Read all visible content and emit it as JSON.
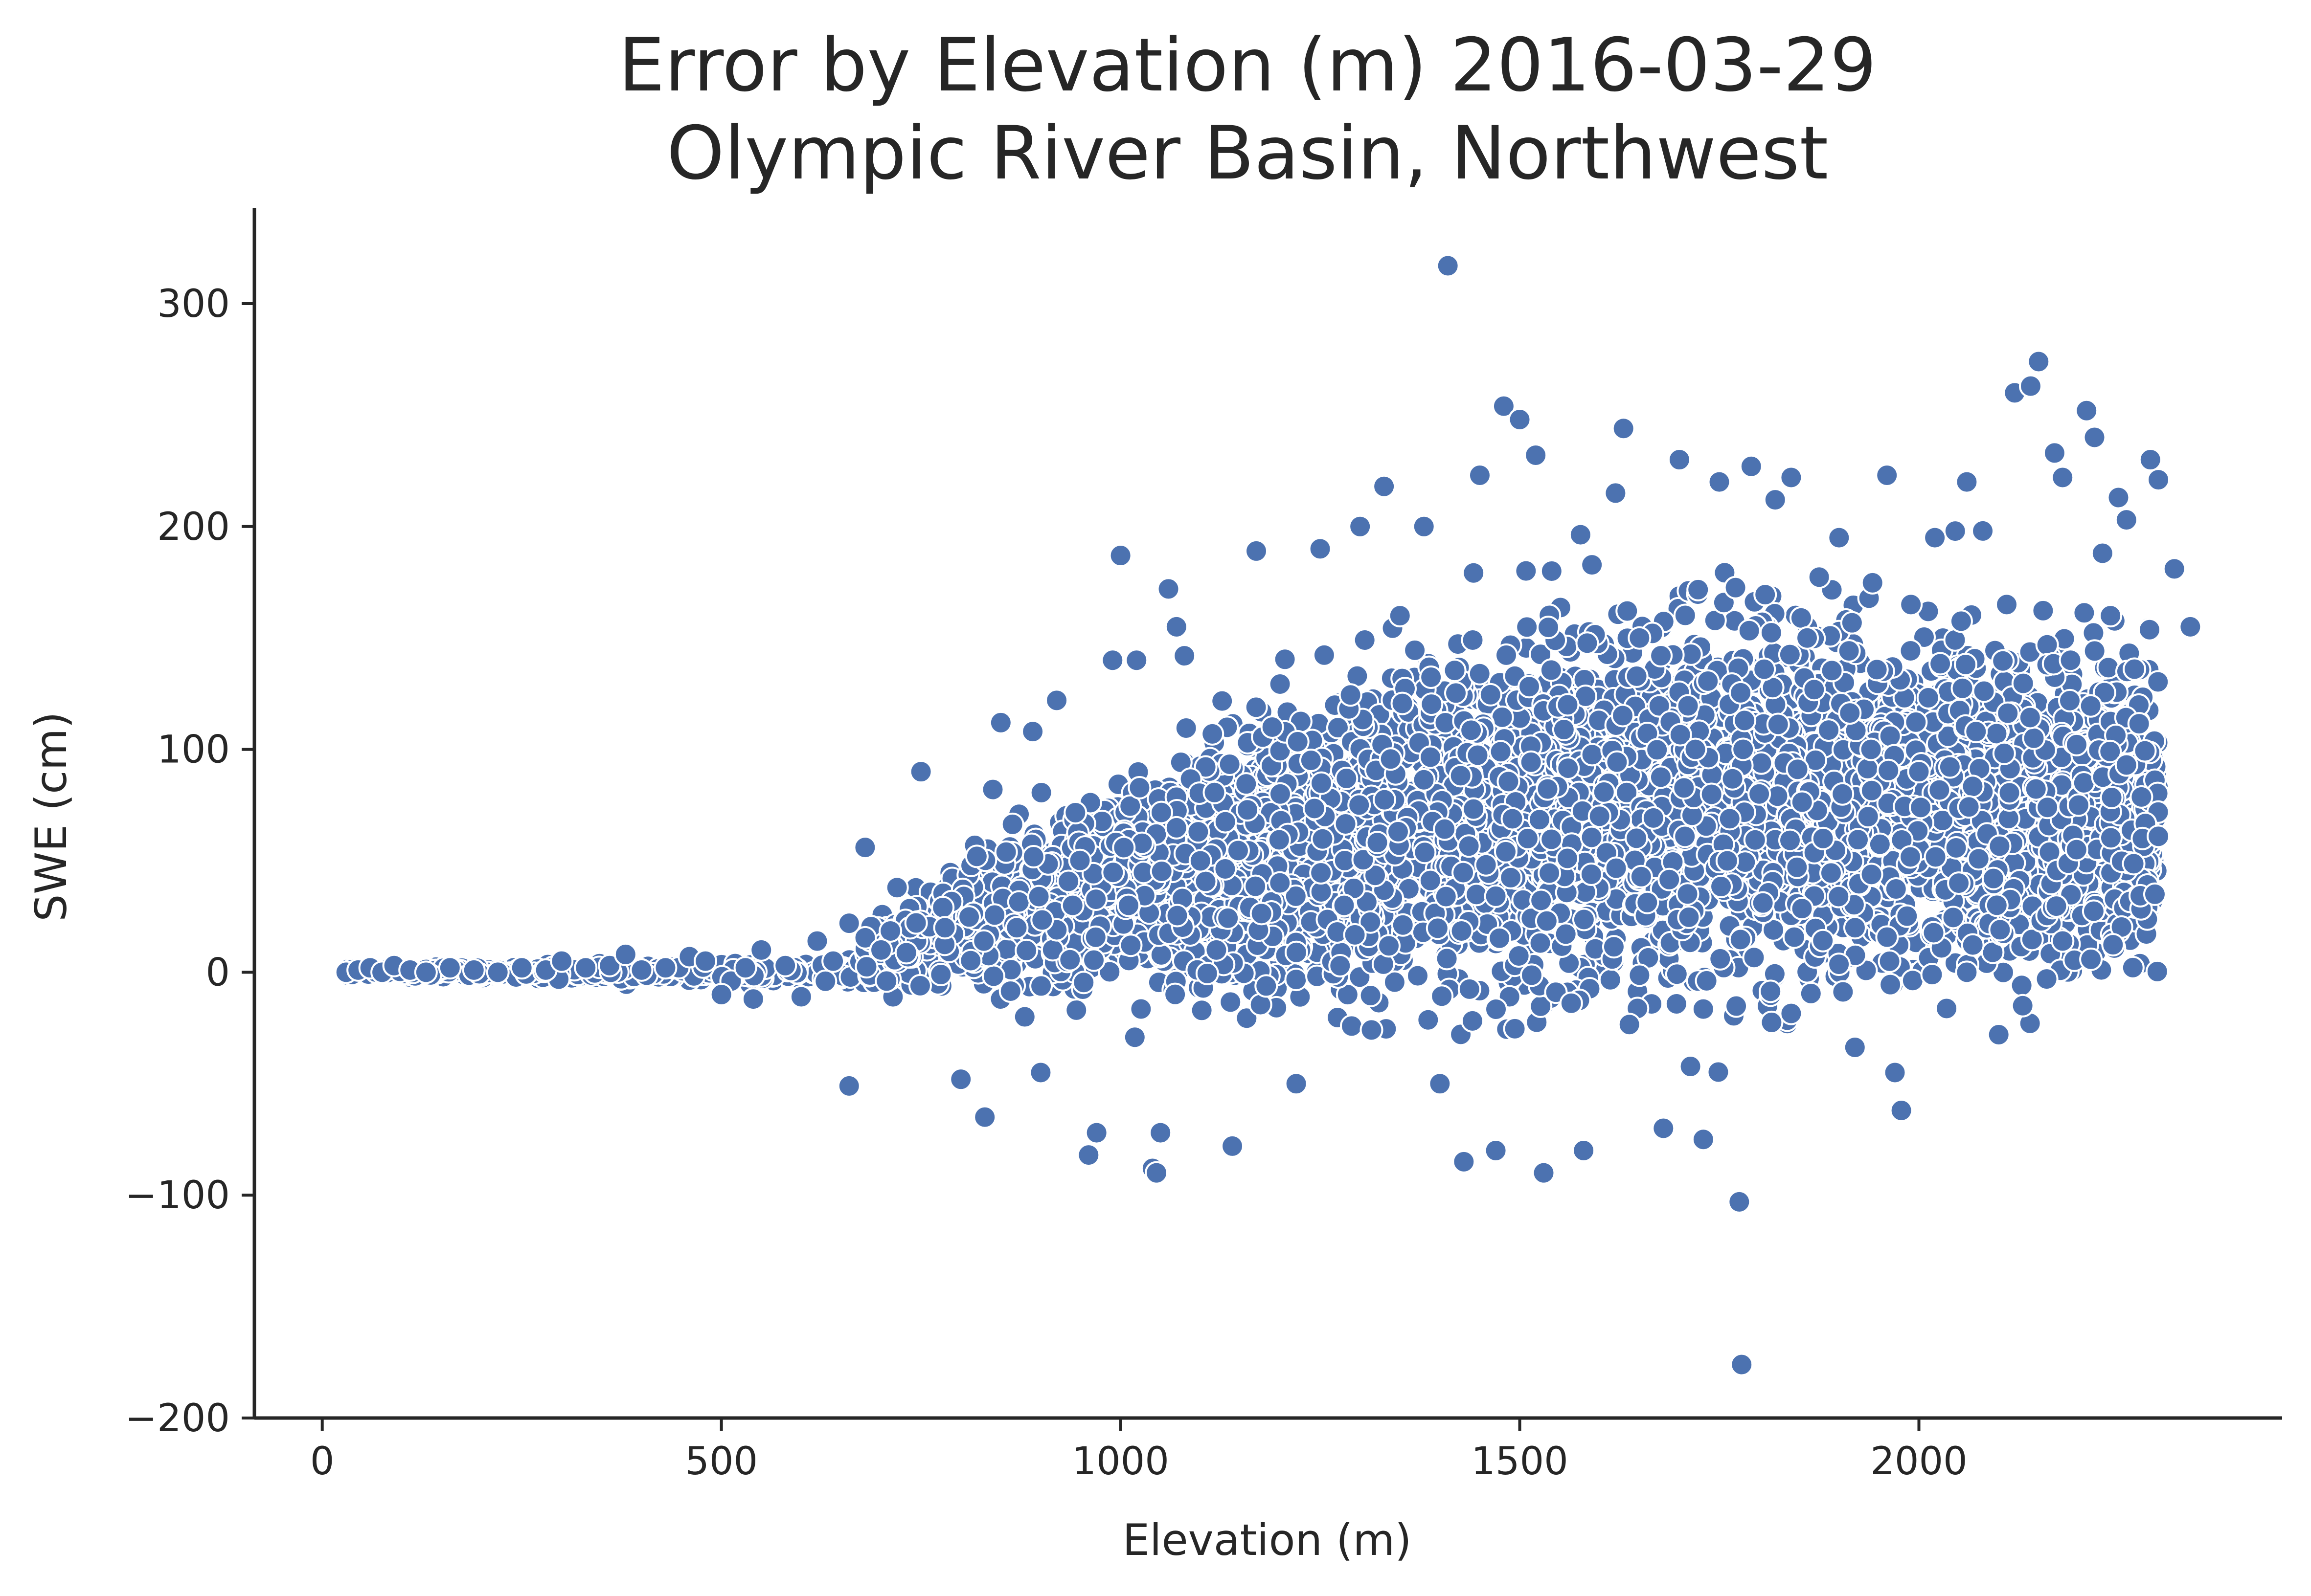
{
  "chart_data": {
    "type": "scatter",
    "title_line1": "Error by Elevation (m) 2016-03-29",
    "title_line2": "Olympic River Basin, Northwest",
    "xlabel": "Elevation (m)",
    "ylabel": "SWE (cm)",
    "xlim": [
      -85,
      2455
    ],
    "ylim": [
      -200,
      343
    ],
    "xticks": [
      0,
      500,
      1000,
      1500,
      2000
    ],
    "xtick_labels": [
      "0",
      "500",
      "1000",
      "1500",
      "2000"
    ],
    "yticks": [
      -200,
      -100,
      0,
      100,
      200,
      300
    ],
    "ytick_labels": [
      "−200",
      "−100",
      "0",
      "100",
      "200",
      "300"
    ],
    "grid": false,
    "legend": "none",
    "marker_color": "#4c72b0",
    "marker_edge_color": "#ffffff",
    "series": [
      {
        "points": [
          [
            30,
            0
          ],
          [
            45,
            1
          ],
          [
            60,
            2
          ],
          [
            75,
            0
          ],
          [
            90,
            3
          ],
          [
            110,
            1
          ],
          [
            130,
            0
          ],
          [
            160,
            2
          ],
          [
            190,
            1
          ],
          [
            220,
            0
          ],
          [
            250,
            2
          ],
          [
            280,
            1
          ],
          [
            300,
            5
          ],
          [
            330,
            2
          ],
          [
            360,
            3
          ],
          [
            380,
            8
          ],
          [
            400,
            1
          ],
          [
            430,
            2
          ],
          [
            460,
            7
          ],
          [
            480,
            5
          ],
          [
            500,
            -10
          ],
          [
            530,
            2
          ],
          [
            540,
            -12
          ],
          [
            550,
            10
          ],
          [
            580,
            3
          ],
          [
            600,
            -11
          ],
          [
            620,
            14
          ],
          [
            640,
            5
          ],
          [
            660,
            -51
          ],
          [
            660,
            22
          ],
          [
            680,
            56
          ],
          [
            700,
            10
          ],
          [
            720,
            38
          ],
          [
            750,
            90
          ],
          [
            780,
            20
          ],
          [
            800,
            -48
          ],
          [
            820,
            52
          ],
          [
            830,
            -65
          ],
          [
            840,
            82
          ],
          [
            850,
            112
          ],
          [
            870,
            20
          ],
          [
            880,
            -20
          ],
          [
            890,
            108
          ],
          [
            900,
            -45
          ],
          [
            920,
            122
          ],
          [
            940,
            30
          ],
          [
            960,
            -82
          ],
          [
            970,
            -72
          ],
          [
            990,
            140
          ],
          [
            1000,
            187
          ],
          [
            1010,
            30
          ],
          [
            1020,
            140
          ],
          [
            1040,
            -88
          ],
          [
            1045,
            -90
          ],
          [
            1050,
            -72
          ],
          [
            1060,
            172
          ],
          [
            1070,
            155
          ],
          [
            1080,
            142
          ],
          [
            1100,
            50
          ],
          [
            1120,
            10
          ],
          [
            1140,
            -78
          ],
          [
            1170,
            189
          ],
          [
            1190,
            110
          ],
          [
            1200,
            80
          ],
          [
            1220,
            -50
          ],
          [
            1250,
            190
          ],
          [
            1280,
            30
          ],
          [
            1300,
            200
          ],
          [
            1330,
            218
          ],
          [
            1350,
            160
          ],
          [
            1380,
            200
          ],
          [
            1400,
            -50
          ],
          [
            1410,
            317
          ],
          [
            1430,
            -85
          ],
          [
            1450,
            223
          ],
          [
            1470,
            -80
          ],
          [
            1480,
            254
          ],
          [
            1500,
            248
          ],
          [
            1510,
            60
          ],
          [
            1520,
            232
          ],
          [
            1530,
            -90
          ],
          [
            1540,
            180
          ],
          [
            1560,
            120
          ],
          [
            1580,
            -80
          ],
          [
            1600,
            70
          ],
          [
            1620,
            215
          ],
          [
            1630,
            244
          ],
          [
            1650,
            150
          ],
          [
            1680,
            -70
          ],
          [
            1700,
            230
          ],
          [
            1720,
            100
          ],
          [
            1730,
            -75
          ],
          [
            1750,
            220
          ],
          [
            1760,
            50
          ],
          [
            1775,
            -103
          ],
          [
            1778,
            -176
          ],
          [
            1790,
            227
          ],
          [
            1800,
            80
          ],
          [
            1820,
            212
          ],
          [
            1840,
            222
          ],
          [
            1860,
            150
          ],
          [
            1880,
            60
          ],
          [
            1900,
            195
          ],
          [
            1920,
            20
          ],
          [
            1940,
            100
          ],
          [
            1960,
            223
          ],
          [
            1970,
            -45
          ],
          [
            1978,
            -62
          ],
          [
            1990,
            165
          ],
          [
            2000,
            90
          ],
          [
            2020,
            195
          ],
          [
            2050,
            40
          ],
          [
            2060,
            220
          ],
          [
            2080,
            198
          ],
          [
            2100,
            -28
          ],
          [
            2110,
            165
          ],
          [
            2120,
            260
          ],
          [
            2140,
            263
          ],
          [
            2150,
            274
          ],
          [
            2170,
            233
          ],
          [
            2180,
            222
          ],
          [
            2190,
            140
          ],
          [
            2210,
            252
          ],
          [
            2220,
            240
          ],
          [
            2230,
            188
          ],
          [
            2240,
            160
          ],
          [
            2250,
            213
          ],
          [
            2260,
            203
          ],
          [
            2270,
            136
          ],
          [
            2280,
            60
          ],
          [
            2290,
            230
          ],
          [
            2300,
            221
          ],
          [
            2320,
            181
          ],
          [
            2340,
            155
          ],
          [
            2300,
            61
          ],
          [
            2260,
            93
          ],
          [
            2200,
            75
          ],
          [
            2160,
            -3
          ],
          [
            2130,
            -15
          ],
          [
            2060,
            0
          ]
        ]
      }
    ]
  }
}
